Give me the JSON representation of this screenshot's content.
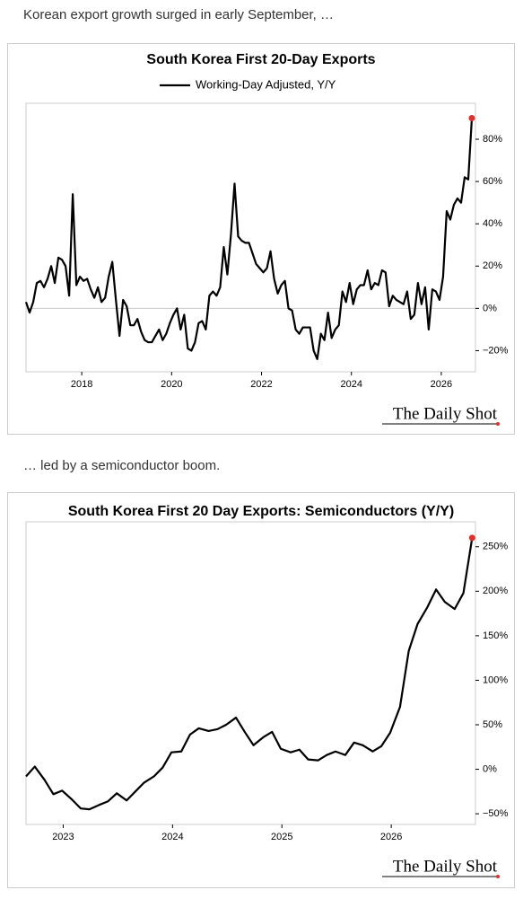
{
  "captions": [
    "Korean export growth surged in early September, …",
    "… led by a semiconductor boom."
  ],
  "chart_data": [
    {
      "type": "line",
      "title": "South Korea First 20-Day Exports",
      "source": "The Daily Shot",
      "legend": "top",
      "zero_line": true,
      "end_marker_color": "#e0302a",
      "xlim": [
        2016.76,
        2026.76
      ],
      "xticks": [
        2018,
        2020,
        2022,
        2024,
        2026
      ],
      "ylim": [
        -30,
        97
      ],
      "yticks": [
        {
          "value": -20,
          "label": "−20%"
        },
        {
          "value": 0,
          "label": "0%"
        },
        {
          "value": 20,
          "label": "20%"
        },
        {
          "value": 40,
          "label": "40%"
        },
        {
          "value": 60,
          "label": "60%"
        },
        {
          "value": 80,
          "label": "80%"
        }
      ],
      "x": [
        2016.76,
        2016.84,
        2016.92,
        2017,
        2017.08,
        2017.16,
        2017.24,
        2017.32,
        2017.4,
        2017.48,
        2017.56,
        2017.64,
        2017.72,
        2017.8,
        2017.88,
        2017.96,
        2018.04,
        2018.12,
        2018.2,
        2018.28,
        2018.36,
        2018.44,
        2018.52,
        2018.6,
        2018.68,
        2018.76,
        2018.84,
        2018.92,
        2019,
        2019.08,
        2019.16,
        2019.24,
        2019.32,
        2019.4,
        2019.48,
        2019.56,
        2019.64,
        2019.72,
        2019.8,
        2019.88,
        2019.96,
        2020.04,
        2020.12,
        2020.2,
        2020.28,
        2020.36,
        2020.44,
        2020.52,
        2020.6,
        2020.68,
        2020.76,
        2020.84,
        2020.92,
        2021,
        2021.08,
        2021.16,
        2021.24,
        2021.32,
        2021.4,
        2021.48,
        2021.56,
        2021.64,
        2021.72,
        2021.8,
        2021.88,
        2021.96,
        2022.04,
        2022.12,
        2022.2,
        2022.28,
        2022.36,
        2022.44,
        2022.52,
        2022.6,
        2022.68,
        2022.76,
        2022.84,
        2022.92,
        2023,
        2023.08,
        2023.16,
        2023.24,
        2023.32,
        2023.4,
        2023.48,
        2023.56,
        2023.64,
        2023.72,
        2023.8,
        2023.88,
        2023.96,
        2024.04,
        2024.12,
        2024.2,
        2024.28,
        2024.36,
        2024.44,
        2024.52,
        2024.6,
        2024.68,
        2024.76,
        2024.84,
        2024.92,
        2025,
        2025.08,
        2025.16,
        2025.24,
        2025.32,
        2025.4,
        2025.48,
        2025.56,
        2025.64,
        2025.72,
        2025.8,
        2025.88,
        2025.96,
        2026.04,
        2026.12,
        2026.2,
        2026.28,
        2026.36,
        2026.44,
        2026.52,
        2026.6,
        2026.68
      ],
      "series": [
        {
          "name": "Working-Day Adjusted, Y/Y",
          "color": "#000000",
          "values": [
            3,
            -2,
            3,
            12,
            13,
            10,
            14,
            20,
            12,
            24,
            23,
            20,
            6,
            54,
            11,
            15,
            13,
            14,
            9,
            5,
            10,
            3,
            5,
            15,
            22,
            4,
            -13,
            4,
            1,
            -8,
            -8,
            -5,
            -11,
            -15,
            -16,
            -16,
            -13,
            -10,
            -15,
            -12,
            -7,
            -3,
            0,
            -10,
            -3,
            -19,
            -20,
            -16,
            -7,
            -6,
            -10,
            6,
            8,
            6,
            10,
            29,
            16,
            35,
            59,
            34,
            32,
            31,
            31,
            26,
            21,
            19,
            17,
            19,
            27,
            14,
            7,
            11,
            13,
            0,
            -1,
            -10,
            -12,
            -9,
            -9,
            -9,
            -20,
            -24,
            -12,
            -15,
            -2,
            -14,
            -10,
            -8,
            8,
            3,
            12,
            2,
            9,
            11,
            11,
            18,
            9,
            12,
            11,
            18,
            17,
            1,
            6,
            4,
            3,
            2,
            8,
            -5,
            -3,
            12,
            2,
            10,
            -10,
            9,
            8,
            4,
            15,
            46,
            42,
            49,
            52,
            50,
            62,
            61,
            90
          ]
        }
      ]
    },
    {
      "type": "line",
      "title": "South Korea First 20 Day Exports: Semiconductors (Y/Y)",
      "source": "The Daily Shot",
      "color": "#000000",
      "end_marker_color": "#e0302a",
      "xlim": [
        2022.66,
        2026.77
      ],
      "xticks": [
        2023,
        2024,
        2025,
        2026
      ],
      "ylim": [
        -62,
        278
      ],
      "yticks": [
        {
          "value": -50,
          "label": "−50%"
        },
        {
          "value": 0,
          "label": "0%"
        },
        {
          "value": 50,
          "label": "50%"
        },
        {
          "value": 100,
          "label": "100%"
        },
        {
          "value": 150,
          "label": "150%"
        },
        {
          "value": 200,
          "label": "200%"
        },
        {
          "value": 250,
          "label": "250%"
        }
      ],
      "x": [
        2022.66,
        2022.74,
        2022.83,
        2022.91,
        2022.99,
        2023.08,
        2023.16,
        2023.24,
        2023.33,
        2023.41,
        2023.49,
        2023.58,
        2023.66,
        2023.74,
        2023.83,
        2023.91,
        2023.99,
        2024.08,
        2024.16,
        2024.24,
        2024.33,
        2024.41,
        2024.49,
        2024.58,
        2024.66,
        2024.74,
        2024.83,
        2024.91,
        2024.99,
        2025.08,
        2025.16,
        2025.24,
        2025.33,
        2025.41,
        2025.49,
        2025.58,
        2025.66,
        2025.74,
        2025.83,
        2025.91,
        2025.99,
        2026.08,
        2026.16,
        2026.24,
        2026.33,
        2026.41,
        2026.49,
        2026.58,
        2026.66,
        2026.74
      ],
      "values": [
        -8,
        3,
        -12,
        -28,
        -24,
        -34,
        -44,
        -45,
        -40,
        -36,
        -27,
        -35,
        -25,
        -15,
        -8,
        2,
        19,
        20,
        39,
        46,
        43,
        45,
        50,
        58,
        42,
        27,
        36,
        42,
        23,
        19,
        22,
        11,
        10,
        16,
        20,
        16,
        30,
        27,
        20,
        26,
        41,
        70,
        133,
        163,
        182,
        202,
        188,
        180,
        198,
        260
      ]
    }
  ]
}
